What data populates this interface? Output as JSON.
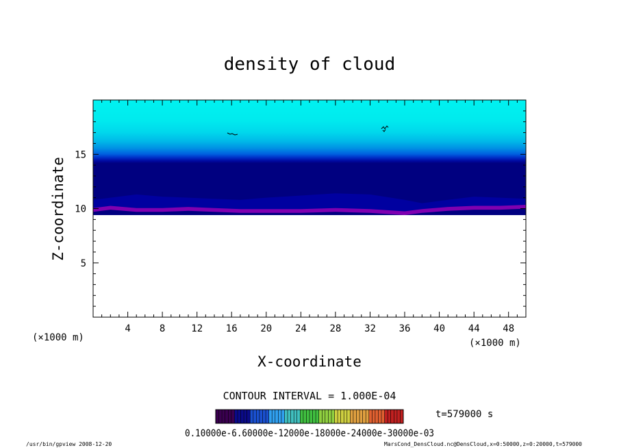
{
  "chart_data": {
    "type": "heatmap",
    "title": "density of cloud",
    "xlabel": "X-coordinate",
    "ylabel": "Z-coordinate",
    "x_unit_label": "(×1000 m)",
    "y_unit_label": "(×1000 m)",
    "xlim": [
      0,
      50
    ],
    "ylim": [
      0,
      20
    ],
    "x_ticks": [
      4,
      8,
      12,
      16,
      20,
      24,
      28,
      32,
      36,
      40,
      44,
      48
    ],
    "x_tick_labels": [
      "4",
      "8",
      "12",
      "16",
      "20",
      "24",
      "28",
      "32",
      "36",
      "40",
      "44",
      "48"
    ],
    "y_ticks": [
      5,
      10,
      15
    ],
    "y_tick_labels": [
      "5",
      "10",
      "15"
    ],
    "contour_interval_text": "CONTOUR INTERVAL = 1.000E-04",
    "time_text": "t=579000 s",
    "colorbar_label_text": "0.10000e-6.60000e-12000e-18000e-24000e-30000e-03",
    "colorbar_colors": [
      "#3a0050",
      "#0a0a8a",
      "#1a50d0",
      "#30a0f0",
      "#40c0c0",
      "#40c040",
      "#90d040",
      "#d0d040",
      "#e0a040",
      "#e06030",
      "#c02020"
    ],
    "field_colors": {
      "top": "#00f0f0",
      "upper": "#00e0ee",
      "middle": "#00b0e8",
      "lower": "#0050e0",
      "core": "#0000a0",
      "base": "#8000b0"
    },
    "cloud_base_z": [
      9.7,
      9.9,
      9.7,
      9.7,
      9.8,
      9.7,
      9.6,
      9.6,
      9.6,
      9.7,
      9.6,
      9.4,
      9.6,
      9.8,
      9.9,
      9.9,
      10.0
    ],
    "cloud_base_x": [
      0,
      2,
      5,
      8,
      11,
      14,
      17,
      20,
      24,
      28,
      32,
      36,
      38,
      41,
      44,
      47,
      50
    ],
    "cloud_core_z": [
      10.8,
      11.0,
      11.3,
      11.1,
      11.0,
      10.9,
      10.8,
      11.0,
      11.2,
      11.4,
      11.3,
      10.8,
      10.5,
      10.8,
      11.1,
      11.0,
      10.9
    ]
  },
  "footer": {
    "left": "/usr/bin/gpview   2008-12-20",
    "right": "MarsCond_DensCloud.nc@DensCloud,x=0:50000,z=0:20000,t=579000"
  }
}
